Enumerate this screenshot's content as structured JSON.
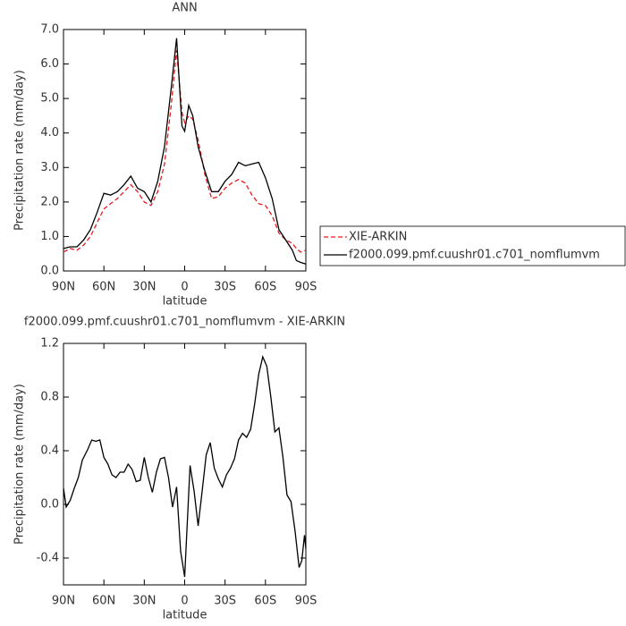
{
  "chart_data": [
    {
      "type": "line",
      "title": "ANN",
      "xlabel": "latitude",
      "ylabel": "Precipitation rate (mm/day)",
      "x": [
        90,
        85,
        80,
        75,
        70,
        65,
        60,
        55,
        50,
        45,
        40,
        35,
        30,
        25,
        20,
        15,
        10,
        6,
        2,
        0,
        -3,
        -6,
        -10,
        -15,
        -20,
        -25,
        -30,
        -35,
        -40,
        -45,
        -50,
        -55,
        -60,
        -65,
        -70,
        -75,
        -80,
        -83,
        -86,
        -90
      ],
      "xlim": [
        90,
        -90
      ],
      "xticks": [
        {
          "value": 90,
          "label": "90N"
        },
        {
          "value": 60,
          "label": "60N"
        },
        {
          "value": 30,
          "label": "30N"
        },
        0,
        {
          "value": -30,
          "label": "30S"
        },
        {
          "value": -60,
          "label": "60S"
        },
        {
          "value": -90,
          "label": "90S"
        }
      ],
      "ylim": [
        0,
        7
      ],
      "yticks": [
        {
          "value": 0,
          "label": "0.0"
        },
        {
          "value": 1,
          "label": "1.0"
        },
        {
          "value": 2,
          "label": "2.0"
        },
        {
          "value": 3,
          "label": "3.0"
        },
        {
          "value": 4,
          "label": "4.0"
        },
        {
          "value": 5,
          "label": "5.0"
        },
        {
          "value": 6,
          "label": "6.0"
        },
        {
          "value": 7,
          "label": "7.0"
        }
      ],
      "legend": "right",
      "series": [
        {
          "name": "XIE-ARKIN",
          "color": "#e41a1c",
          "linestyle": "dashed",
          "values": [
            0.55,
            0.65,
            0.6,
            0.75,
            1.0,
            1.4,
            1.8,
            1.95,
            2.1,
            2.3,
            2.5,
            2.3,
            2.0,
            1.9,
            2.3,
            3.1,
            4.8,
            6.4,
            4.6,
            4.3,
            4.5,
            4.4,
            3.8,
            2.8,
            2.1,
            2.15,
            2.4,
            2.55,
            2.65,
            2.55,
            2.2,
            1.95,
            1.9,
            1.6,
            1.1,
            0.9,
            0.8,
            0.65,
            0.55,
            0.6
          ]
        },
        {
          "name": "f2000.099.pmf.cuushr01.c701_nomflumvm",
          "color": "#000000",
          "linestyle": "solid",
          "values": [
            0.65,
            0.7,
            0.7,
            0.9,
            1.2,
            1.7,
            2.25,
            2.2,
            2.3,
            2.5,
            2.75,
            2.4,
            2.3,
            2.0,
            2.6,
            3.6,
            5.3,
            6.75,
            4.2,
            4.05,
            4.8,
            4.5,
            3.6,
            2.9,
            2.3,
            2.3,
            2.6,
            2.8,
            3.15,
            3.05,
            3.1,
            3.15,
            2.7,
            2.1,
            1.2,
            0.9,
            0.6,
            0.3,
            0.25,
            0.2
          ]
        }
      ]
    },
    {
      "type": "line",
      "title": "f2000.099.pmf.cuushr01.c701_nomflumvm - XIE-ARKIN",
      "xlabel": "latitude",
      "ylabel": "Precipitation rate (mm/day)",
      "x": [
        90,
        88,
        85,
        82,
        79,
        76,
        72,
        69,
        66,
        63,
        60,
        57,
        54,
        51,
        48,
        45,
        42,
        39,
        36,
        33,
        30,
        27,
        24,
        21,
        18,
        15,
        12,
        9,
        6,
        3,
        0,
        -4,
        -7,
        -10,
        -13,
        -16,
        -19,
        -22,
        -25,
        -28,
        -31,
        -34,
        -37,
        -40,
        -43,
        -46,
        -49,
        -52,
        -55,
        -58,
        -61,
        -64,
        -67,
        -70,
        -73,
        -76,
        -79,
        -82,
        -85,
        -87,
        -89,
        -90
      ],
      "xlim": [
        90,
        -90
      ],
      "xticks": [
        {
          "value": 90,
          "label": "90N"
        },
        {
          "value": 60,
          "label": "60N"
        },
        {
          "value": 30,
          "label": "30N"
        },
        0,
        {
          "value": -30,
          "label": "30S"
        },
        {
          "value": -60,
          "label": "60S"
        },
        {
          "value": -90,
          "label": "90S"
        }
      ],
      "ylim": [
        -0.6,
        1.2
      ],
      "yticks": [
        -0.4,
        {
          "value": 0,
          "label": "0.0"
        },
        0.4,
        0.8,
        1.2
      ],
      "series": [
        {
          "color": "#000000",
          "linestyle": "solid",
          "values": [
            0.12,
            -0.02,
            0.03,
            0.12,
            0.2,
            0.33,
            0.41,
            0.48,
            0.47,
            0.48,
            0.35,
            0.3,
            0.22,
            0.2,
            0.24,
            0.24,
            0.3,
            0.26,
            0.17,
            0.18,
            0.35,
            0.2,
            0.09,
            0.24,
            0.34,
            0.35,
            0.2,
            -0.02,
            0.13,
            -0.35,
            -0.54,
            0.29,
            0.1,
            -0.16,
            0.1,
            0.37,
            0.46,
            0.27,
            0.19,
            0.13,
            0.22,
            0.27,
            0.34,
            0.48,
            0.53,
            0.5,
            0.56,
            0.75,
            0.97,
            1.1,
            1.03,
            0.8,
            0.54,
            0.57,
            0.35,
            0.07,
            0.02,
            -0.2,
            -0.47,
            -0.42,
            -0.23,
            -0.33
          ]
        }
      ]
    }
  ]
}
